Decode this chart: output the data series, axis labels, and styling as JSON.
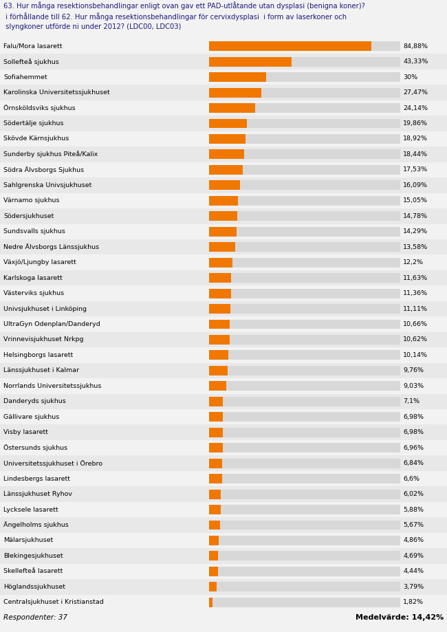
{
  "title_lines": [
    "63. Hur många resektionsbehandlingar enligt ovan gav ett PAD-utlåtande utan dysplasi (benigna koner)?",
    " i förhållande till 62. Hur många resektionsbehandlingar för cervixdysplasi  i form av laserkoner och",
    " slyngkoner utförde ni under 2012? (LDC00, LDC03)"
  ],
  "categories": [
    "Falu/Mora lasarett",
    "Sollefteå sjukhus",
    "Sofiahemmet",
    "Karolinska Universitetssjukhuset",
    "Örnsköldsviks sjukhus",
    "Södertälje sjukhus",
    "Skövde Kärnsjukhus",
    "Sunderby sjukhus Piteå/Kalix",
    "Södra Älvsborgs Sjukhus",
    "Sahlgrenska Univsjukhuset",
    "Värnamo sjukhus",
    "Södersjukhuset",
    "Sundsvalls sjukhus",
    "Nedre Älvsborgs Länssjukhus",
    "Växjö/Ljungby lasarett",
    "Karlskoga lasarett",
    "Västerviks sjukhus",
    "Univsjukhuset i Linköping",
    "UltraGyn Odenplan/Danderyd",
    "Vrinnevisjukhuset Nrkpg",
    "Helsingborgs lasarett",
    "Länssjukhuset i Kalmar",
    "Norrlands Universitetssjukhus",
    "Danderyds sjukhus",
    "Gällivare sjukhus",
    "Visby lasarett",
    "Östersunds sjukhus",
    "Universitetssjukhuset i Örebro",
    "Lindesbergs lasarett",
    "Länssjukhuset Ryhov",
    "Lycksele lasarett",
    "Ängelholms sjukhus",
    "Mälarsjukhuset",
    "Blekingesjukhuset",
    "Skellefteå lasarett",
    "Höglandssjukhuset",
    "Centralsjukhuset i Kristianstad"
  ],
  "values": [
    84.88,
    43.33,
    30.0,
    27.47,
    24.14,
    19.86,
    18.92,
    18.44,
    17.53,
    16.09,
    15.05,
    14.78,
    14.29,
    13.58,
    12.2,
    11.63,
    11.36,
    11.11,
    10.66,
    10.62,
    10.14,
    9.76,
    9.03,
    7.1,
    6.98,
    6.98,
    6.96,
    6.84,
    6.6,
    6.02,
    5.88,
    5.67,
    4.86,
    4.69,
    4.44,
    3.79,
    1.82
  ],
  "labels": [
    "84,88%",
    "43,33%",
    "30%",
    "27,47%",
    "24,14%",
    "19,86%",
    "18,92%",
    "18,44%",
    "17,53%",
    "16,09%",
    "15,05%",
    "14,78%",
    "14,29%",
    "13,58%",
    "12,2%",
    "11,63%",
    "11,36%",
    "11,11%",
    "10,66%",
    "10,62%",
    "10,14%",
    "9,76%",
    "9,03%",
    "7,1%",
    "6,98%",
    "6,98%",
    "6,96%",
    "6,84%",
    "6,6%",
    "6,02%",
    "5,88%",
    "5,67%",
    "4,86%",
    "4,69%",
    "4,44%",
    "3,79%",
    "1,82%"
  ],
  "bar_color": "#f07800",
  "bg_bar_color": "#d8d8d8",
  "title_bg_color": "#ccd4e4",
  "row_alt_color": "#e8e8e8",
  "row_base_color": "#f2f2f2",
  "fig_bg_color": "#f2f2f2",
  "respondenter_text": "Respondenter: 37",
  "medelvarde_text": "Medelvärde: 14,42%",
  "max_value": 100.0,
  "figure_width": 6.5,
  "figure_height": 9.19,
  "label_fontsize": 6.8,
  "title_fontsize": 7.2,
  "bar_label_fontsize": 6.8,
  "footer_fontsize": 7.5
}
